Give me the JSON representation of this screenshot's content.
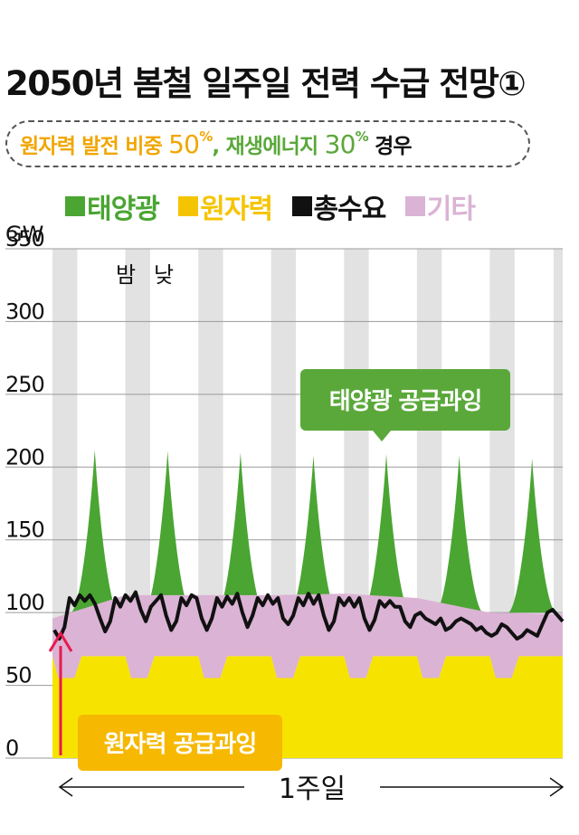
{
  "title": "2050년 봄철 일주일 전력 수급 전망①",
  "subtitle": {
    "part1": "원자력 발전 비중 ",
    "nuclear_pct": "50",
    "sep": ", 재생에너지 ",
    "renew_pct": "30",
    "pct_sign": "%",
    "suffix": "경우"
  },
  "colors": {
    "solar": "#4aa532",
    "nuclear": "#f5c400",
    "nuclear_fill": "#f6e400",
    "demand": "#111111",
    "other": "#dbb3d4",
    "night_band": "#e2e2e2",
    "arrow": "#e8194e",
    "callout_green": "#5aa83a",
    "callout_yellow": "#f6b800"
  },
  "legend": [
    {
      "label": "태양광",
      "color_key": "solar"
    },
    {
      "label": "원자력",
      "color_key": "nuclear"
    },
    {
      "label": "총수요",
      "color_key": "demand"
    },
    {
      "label": "기타",
      "color_key": "other"
    }
  ],
  "chart_data": {
    "type": "area",
    "ylabel": "GW",
    "ylim": [
      0,
      350
    ],
    "yticks": [
      0,
      50,
      100,
      150,
      200,
      250,
      300,
      350
    ],
    "xlabel": "1주일",
    "period_labels": [
      "밤",
      "낮"
    ],
    "days": 7,
    "nuclear_day": 70,
    "nuclear_night": 55,
    "other_top": [
      96,
      112,
      112,
      112,
      113,
      110,
      100,
      99
    ],
    "solar_peaks": [
      212,
      211,
      210,
      208,
      209,
      208,
      206
    ],
    "demand": [
      88,
      82,
      90,
      110,
      105,
      112,
      108,
      112,
      106,
      96,
      87,
      94,
      110,
      104,
      112,
      108,
      114,
      102,
      94,
      104,
      108,
      112,
      98,
      88,
      94,
      110,
      105,
      112,
      110,
      96,
      88,
      96,
      110,
      104,
      111,
      106,
      113,
      100,
      90,
      98,
      110,
      105,
      112,
      106,
      110,
      96,
      92,
      98,
      110,
      105,
      113,
      106,
      112,
      98,
      88,
      94,
      110,
      105,
      110,
      104,
      110,
      96,
      88,
      95,
      108,
      104,
      108,
      104,
      104,
      94,
      90,
      98,
      100,
      96,
      94,
      92,
      96,
      88,
      90,
      94,
      96,
      94,
      92,
      88,
      90,
      86,
      84,
      86,
      92,
      90,
      86,
      82,
      84,
      88,
      86,
      84,
      92,
      100,
      102,
      98,
      94
    ],
    "annotations": [
      "태양광 공급과잉",
      "원자력 공급과잉"
    ]
  }
}
